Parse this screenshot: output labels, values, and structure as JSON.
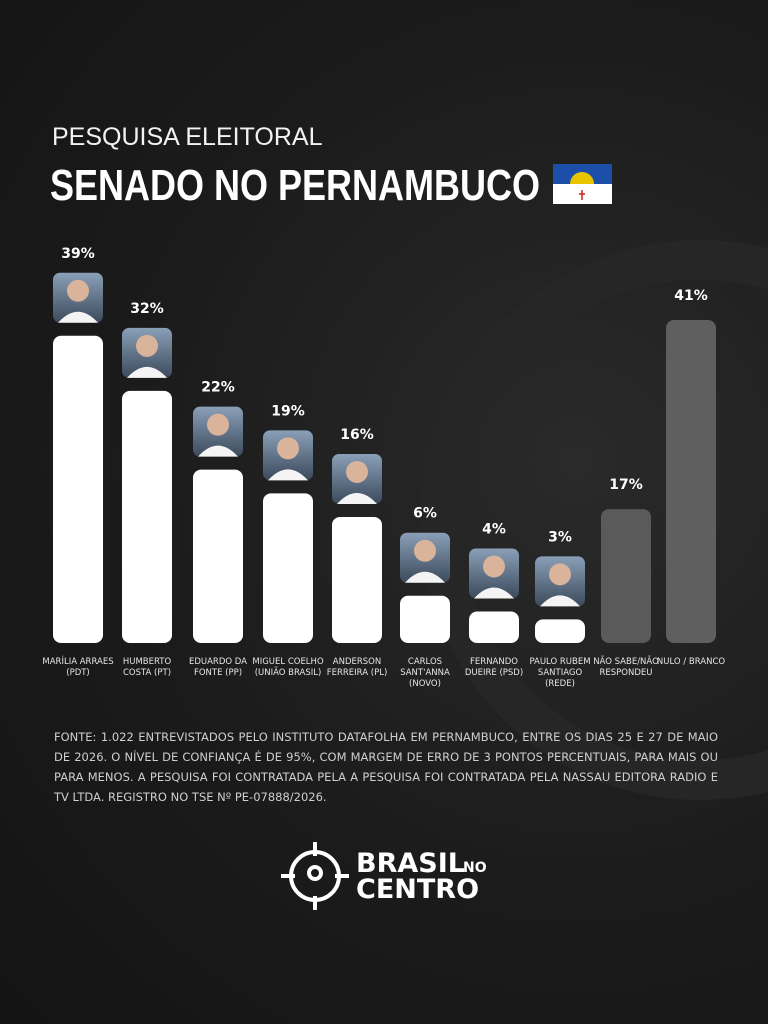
{
  "chart_data": {
    "type": "bar",
    "subtitle": "PESQUISA ELEITORAL",
    "title": "SENADO NO PERNAMBUCO",
    "categories": [
      "MARÍLIA ARRAES (PDT)",
      "HUMBERTO COSTA (PT)",
      "EDUARDO DA FONTE (PP)",
      "MIGUEL COELHO (UNIÃO BRASIL)",
      "ANDERSON FERREIRA (PL)",
      "CARLOS SANT'ANNA (NOVO)",
      "FERNANDO DUEIRE (PSD)",
      "PAULO RUBEM SANTIAGO (REDE)",
      "NÃO SABE/NÃO RESPONDEU",
      "NULO / BRANCO"
    ],
    "values": [
      39,
      32,
      22,
      19,
      16,
      6,
      4,
      3,
      17,
      41
    ],
    "value_labels": [
      "39%",
      "32%",
      "22%",
      "19%",
      "16%",
      "6%",
      "4%",
      "3%",
      "17%",
      "41%"
    ],
    "colors": [
      "#ffffff",
      "#ffffff",
      "#ffffff",
      "#ffffff",
      "#ffffff",
      "#ffffff",
      "#ffffff",
      "#ffffff",
      "#5a5a5a",
      "#5f5f5f"
    ],
    "note": "FONTE: 1.022 ENTREVISTADOS PELO INSTITUTO DATAFOLHA EM PERNAMBUCO, ENTRE OS DIAS 25 E 27 DE MAIO DE 2026. O NÍVEL DE CONFIANÇA É DE 95%, COM MARGEM DE ERRO DE 3 PONTOS PERCENTUAIS, PARA MAIS OU PARA MENOS. A PESQUISA FOI CONTRATADA PELA A PESQUISA FOI CONTRATADA PELA NASSAU EDITORA RADIO E TV LTDA. REGISTRO NO TSE Nº PE-07888/2026."
  },
  "brand": {
    "name": "BRASIL",
    "connector": "NO",
    "name2": "CENTRO"
  }
}
